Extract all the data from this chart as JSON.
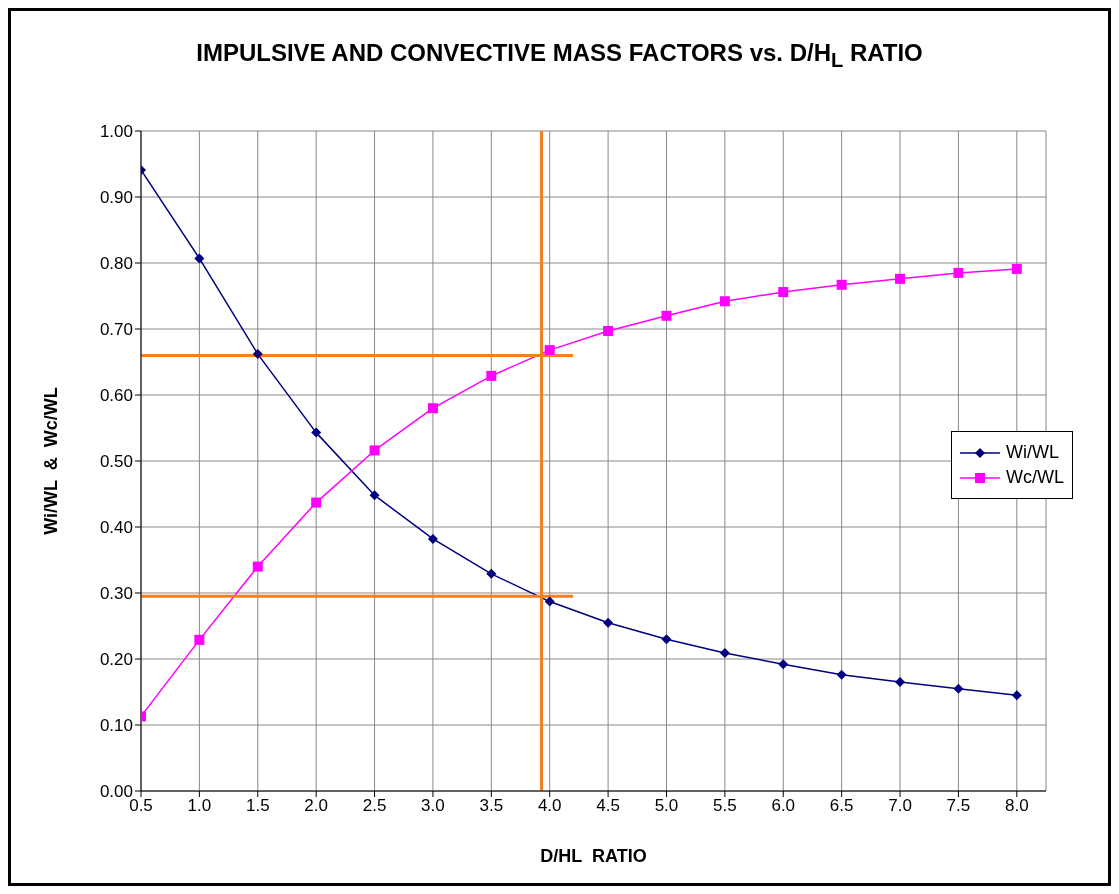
{
  "chart_data": {
    "type": "line",
    "title": "IMPULSIVE AND CONVECTIVE MASS FACTORS vs. D/H$_{L}$ RATIO",
    "xlabel": "D/HL  RATIO",
    "ylabel": "Wi/WL  &  Wc/WL",
    "xlim": [
      0.5,
      8.25
    ],
    "xticks": [
      {
        "value": 0.5,
        "label": "0.5"
      },
      {
        "value": 1,
        "label": "1.0"
      },
      {
        "value": 1.5,
        "label": "1.5"
      },
      {
        "value": 2,
        "label": "2.0"
      },
      {
        "value": 2.5,
        "label": "2.5"
      },
      {
        "value": 3,
        "label": "3.0"
      },
      {
        "value": 3.5,
        "label": "3.5"
      },
      {
        "value": 4,
        "label": "4.0"
      },
      {
        "value": 4.5,
        "label": "4.5"
      },
      {
        "value": 5,
        "label": "5.0"
      },
      {
        "value": 5.5,
        "label": "5.5"
      },
      {
        "value": 6,
        "label": "6.0"
      },
      {
        "value": 6.5,
        "label": "6.5"
      },
      {
        "value": 7,
        "label": "7.0"
      },
      {
        "value": 7.5,
        "label": "7.5"
      },
      {
        "value": 8,
        "label": "8.0"
      }
    ],
    "ylim": [
      0,
      1
    ],
    "yticks": [
      {
        "value": 0,
        "label": "0.00"
      },
      {
        "value": 0.1,
        "label": "0.10"
      },
      {
        "value": 0.2,
        "label": "0.20"
      },
      {
        "value": 0.3,
        "label": "0.30"
      },
      {
        "value": 0.4,
        "label": "0.40"
      },
      {
        "value": 0.5,
        "label": "0.50"
      },
      {
        "value": 0.6,
        "label": "0.60"
      },
      {
        "value": 0.7,
        "label": "0.70"
      },
      {
        "value": 0.8,
        "label": "0.80"
      },
      {
        "value": 0.9,
        "label": "0.90"
      },
      {
        "value": 1,
        "label": "1.00"
      }
    ],
    "grid": true,
    "legend": "right",
    "x": [
      0.5,
      1,
      1.5,
      2,
      2.5,
      3,
      3.5,
      4,
      4.5,
      5,
      5.5,
      6,
      6.5,
      7,
      7.5,
      8
    ],
    "series": [
      {
        "name": "Wi/WL",
        "color": "#000080",
        "marker": "diamond",
        "values": [
          0.941,
          0.807,
          0.662,
          0.543,
          0.448,
          0.382,
          0.329,
          0.287,
          0.255,
          0.23,
          0.209,
          0.192,
          0.176,
          0.165,
          0.155,
          0.145
        ]
      },
      {
        "name": "Wc/WL",
        "color": "#ff00ff",
        "marker": "square",
        "values": [
          0.113,
          0.229,
          0.34,
          0.437,
          0.516,
          0.58,
          0.629,
          0.668,
          0.697,
          0.72,
          0.742,
          0.756,
          0.767,
          0.776,
          0.785,
          0.791
        ]
      },
      {
        "color": "#f08020",
        "marker": "none",
        "x": [
          0.5,
          4.2
        ],
        "values": [
          0.66,
          0.66
        ]
      },
      {
        "color": "#f08020",
        "marker": "none",
        "x": [
          0.5,
          4.2
        ],
        "values": [
          0.295,
          0.295
        ]
      },
      {
        "color": "#f08020",
        "marker": "none",
        "x": [
          3.93,
          3.93
        ],
        "values": [
          0,
          1
        ]
      }
    ]
  }
}
